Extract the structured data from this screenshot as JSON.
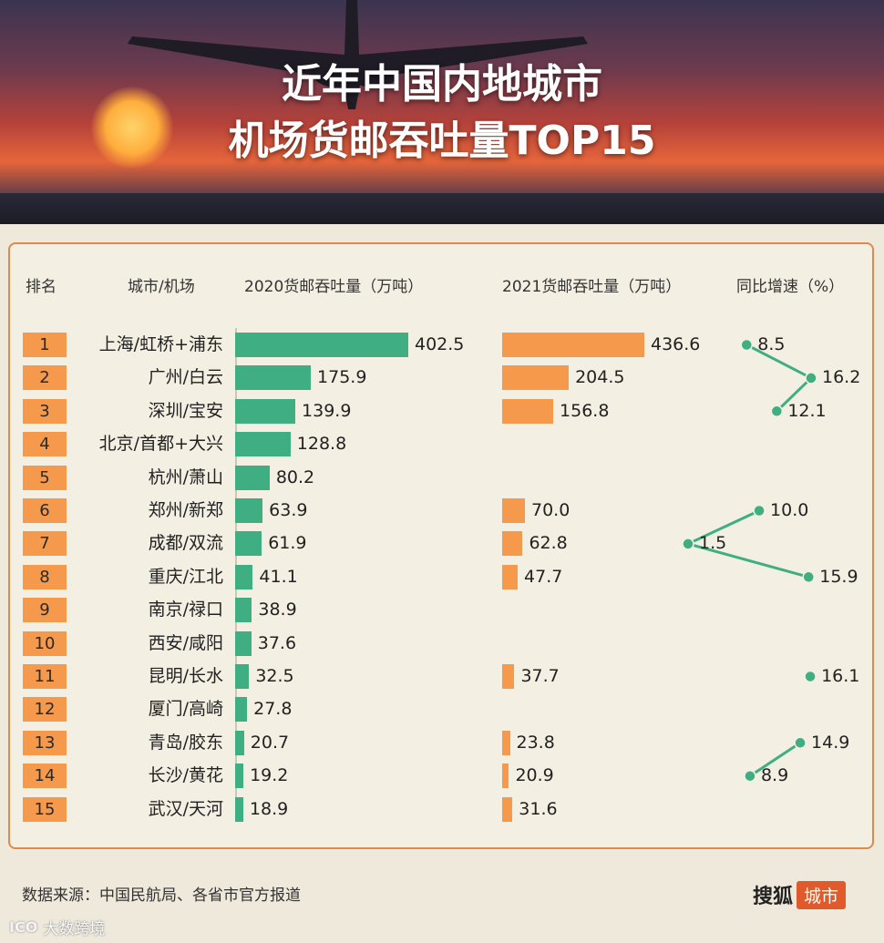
{
  "header": {
    "title_line1": "近年中国内地城市",
    "title_line2": "机场货邮吞吐量TOP15"
  },
  "columns": {
    "rank": "排名",
    "city": "城市/机场",
    "y2020": "2020货邮吞吐量（万吨）",
    "y2021": "2021货邮吞吐量（万吨）",
    "growth": "同比增速（%）"
  },
  "colors": {
    "bar2020": "#3fae83",
    "bar2021": "#f59a4c",
    "growth_line": "#3fae83",
    "rank_box": "#f59a4c"
  },
  "chart_data": {
    "type": "bar",
    "categories": [
      "上海/虹桥+浦东",
      "广州/白云",
      "深圳/宝安",
      "北京/首都+大兴",
      "杭州/萧山",
      "郑州/新郑",
      "成都/双流",
      "重庆/江北",
      "南京/禄口",
      "西安/咸阳",
      "昆明/长水",
      "厦门/高崎",
      "青岛/胶东",
      "长沙/黄花",
      "武汉/天河"
    ],
    "ranks": [
      "1",
      "2",
      "3",
      "4",
      "5",
      "6",
      "7",
      "8",
      "9",
      "10",
      "11",
      "12",
      "13",
      "14",
      "15"
    ],
    "series": [
      {
        "name": "2020货邮吞吐量（万吨）",
        "values": [
          402.5,
          175.9,
          139.9,
          128.8,
          80.2,
          63.9,
          61.9,
          41.1,
          38.9,
          37.6,
          32.5,
          27.8,
          20.7,
          19.2,
          18.9
        ],
        "labels": [
          "402.5",
          "175.9",
          "139.9",
          "128.8",
          "80.2",
          "63.9",
          "61.9",
          "41.1",
          "38.9",
          "37.6",
          "32.5",
          "27.8",
          "20.7",
          "19.2",
          "18.9"
        ]
      },
      {
        "name": "2021货邮吞吐量（万吨）",
        "values": [
          436.6,
          204.5,
          156.8,
          null,
          null,
          70.0,
          62.8,
          47.7,
          null,
          null,
          37.7,
          null,
          23.8,
          20.9,
          31.6
        ],
        "labels": [
          "436.6",
          "204.5",
          "156.8",
          "",
          "",
          "70.0",
          "62.8",
          "47.7",
          "",
          "",
          "37.7",
          "",
          "23.8",
          "20.9",
          "31.6"
        ]
      },
      {
        "name": "同比增速（%）",
        "values": [
          8.5,
          16.2,
          12.1,
          null,
          null,
          10.0,
          1.5,
          15.9,
          null,
          null,
          16.1,
          null,
          14.9,
          8.9,
          null
        ],
        "labels": [
          "8.5",
          "16.2",
          "12.1",
          "",
          "",
          "10.0",
          "1.5",
          "15.9",
          "",
          "",
          "16.1",
          "",
          "14.9",
          "8.9",
          ""
        ]
      }
    ]
  },
  "footer": {
    "source": "数据来源：中国民航局、各省市官方报道",
    "brand_name": "搜狐",
    "brand_tag": "城市",
    "watermark_logo": "ICO",
    "watermark_text": "大数跨境"
  }
}
